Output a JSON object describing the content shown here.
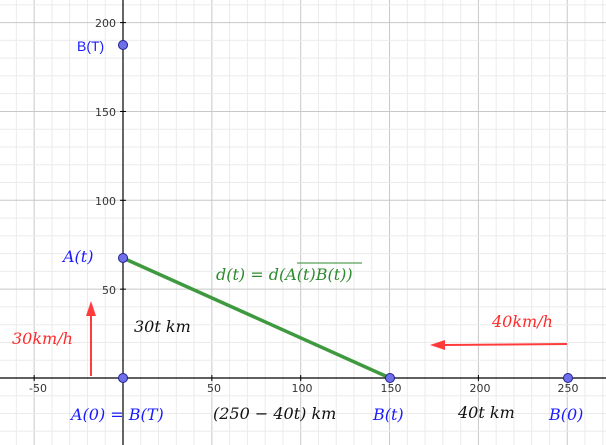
{
  "colors": {
    "point_fill": "#6f6fe9",
    "point_stroke": "#1f1f8f",
    "segment": "#3f9a3f",
    "arrow": "#ff3b3b",
    "blue_text": "#1a1aff",
    "green_text": "#2e8a2e",
    "red_text": "#ff2a2a",
    "black_text": "#111111",
    "grid_major": "#c8c8c8",
    "grid_minor": "#ebebeb",
    "axis": "#000000"
  },
  "axes": {
    "x_ticks": [
      "-50",
      "50",
      "100",
      "150",
      "200",
      "250"
    ],
    "y_ticks": [
      "50",
      "100",
      "150",
      "200"
    ]
  },
  "labels": {
    "point_bT": "B(T)",
    "point_At": "A(t)",
    "point_A0_BT": "A(0) = B(T)",
    "point_Bt": "B(t)",
    "point_B0": "B(0)",
    "distance_formula": "d(t) = d(A(t)B(t))",
    "distance_overline": "A(t)B(t)",
    "vertical_distance": "30t km",
    "horizontal_left_distance": "(250 − 40t) km",
    "horizontal_right_distance": "40t km",
    "speed_a": "30km/h",
    "speed_b": "40km/h"
  }
}
